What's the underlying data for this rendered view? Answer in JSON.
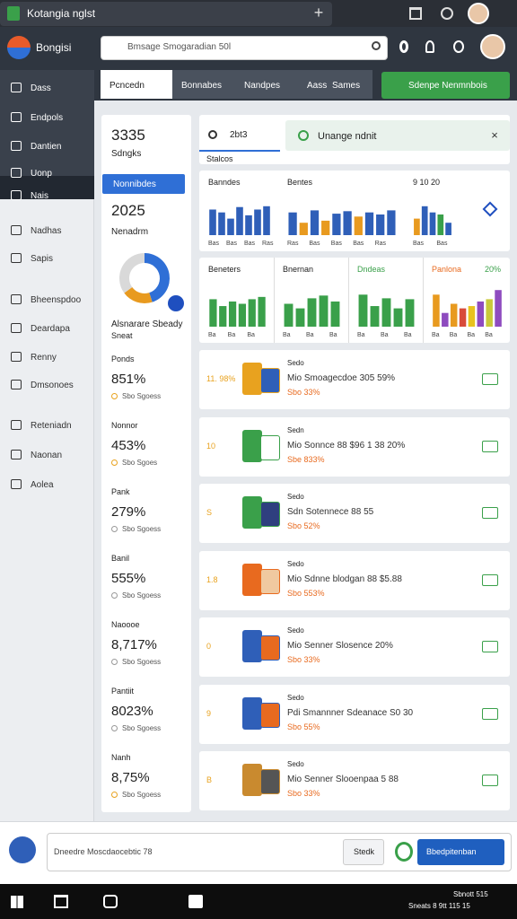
{
  "window": {
    "tab_title": "Kotangia nglst"
  },
  "header": {
    "brand": "Bongisi",
    "search": "Bmsage Smogaradian 50l"
  },
  "nav": {
    "tabs": [
      "Pcncedn",
      "Bonnabes",
      "Nandpes",
      "Aass",
      "Sames"
    ],
    "action": "Sdenpe Nenmnbois"
  },
  "sidebar": {
    "items": [
      "Dass",
      "Endpols",
      "Dantien",
      "Uonp",
      "Nais",
      "Nadhas",
      "Sapis",
      "Bheenspdoo",
      "Deardapa",
      "Renny",
      "Dmsonoes",
      "Reteniadn",
      "Naonan",
      "Aolea"
    ]
  },
  "summary": {
    "value_1": "3335",
    "label_1": "Sdngks",
    "button": "Nonnibdes",
    "value_2": "2025",
    "label_2": "Nenadrm",
    "donut": {
      "values": [
        45,
        20,
        35
      ],
      "colors": [
        "#2f6fd6",
        "#e89a1f",
        "#d9d9d9"
      ]
    },
    "caption": "Alsnarare Sbeady",
    "caption_2": "Sneat",
    "metrics": [
      {
        "label": "Ponds",
        "value": "851%",
        "note": "Sbo Sgoess"
      },
      {
        "label": "Nonnor",
        "value": "453%",
        "note": "Sbo Sgoes"
      },
      {
        "label": "Pank",
        "value": "279%",
        "note": "Sbo Sgoess"
      },
      {
        "label": "Banil",
        "value": "555%",
        "note": "Sbo Sgoess"
      },
      {
        "label": "Naoooe",
        "value": "8,717%",
        "note": "Sbo Sgoess"
      },
      {
        "label": "Pantiit",
        "value": "8023%",
        "note": "Sbo Sgoess"
      },
      {
        "label": "Nanh",
        "value": "8,75%",
        "note": "Sbo Sgoess"
      }
    ]
  },
  "panel": {
    "search": "2bt3",
    "alert": "Unange ndnit",
    "tab": "Stalcos"
  },
  "charts_row_1": [
    {
      "title": "Banndes",
      "categories": [
        "Bas",
        null,
        "Bas",
        null,
        "Bas",
        null,
        "Ras"
      ],
      "values": [
        62,
        55,
        40,
        68,
        48,
        62,
        70
      ],
      "colors": [
        "#2f5fb8",
        "#2f5fb8",
        "#2f5fb8",
        "#2f5fb8",
        "#2f5fb8",
        "#2f5fb8",
        "#2f5fb8"
      ],
      "ylim": [
        0,
        100
      ]
    },
    {
      "title": "Bentes",
      "categories": [
        "Ras",
        null,
        "Bas",
        null,
        "Bas",
        null,
        "Bas",
        null,
        "Ras",
        null
      ],
      "values": [
        55,
        30,
        60,
        35,
        52,
        58,
        45,
        55,
        50,
        60
      ],
      "colors": [
        "#2f5fb8",
        "#e89a1f",
        "#2f5fb8",
        "#e89a1f",
        "#2f5fb8",
        "#2f5fb8",
        "#e89a1f",
        "#2f5fb8",
        "#2f5fb8",
        "#2f5fb8"
      ],
      "ylim": [
        0,
        100
      ]
    },
    {
      "title": "9 10 20",
      "categories": [
        "Bas",
        null,
        null,
        "Bas",
        null
      ],
      "values": [
        40,
        70,
        55,
        50,
        30
      ],
      "colors": [
        "#e89a1f",
        "#2f5fb8",
        "#2f5fb8",
        "#3aa04a",
        "#2f5fb8"
      ],
      "ylim": [
        0,
        100
      ]
    }
  ],
  "charts_row_2": [
    {
      "title": "Beneters",
      "categories": [
        "Ba",
        null,
        "Ba",
        null,
        "Ba",
        null
      ],
      "values": [
        60,
        45,
        55,
        50,
        60,
        65
      ],
      "colors": [
        "#3aa04a",
        "#3aa04a",
        "#3aa04a",
        "#3aa04a",
        "#3aa04a",
        "#3aa04a"
      ],
      "ylim": [
        0,
        100
      ]
    },
    {
      "title": "Bnernan",
      "categories": [
        "Ba",
        null,
        "Ba",
        null,
        "Ba"
      ],
      "values": [
        50,
        40,
        62,
        68,
        55
      ],
      "colors": [
        "#3aa04a",
        "#3aa04a",
        "#3aa04a",
        "#3aa04a",
        "#3aa04a"
      ],
      "ylim": [
        0,
        100
      ]
    },
    {
      "title": "Dndeas",
      "categories": [
        "Ba",
        null,
        "Ba",
        null,
        "Ba"
      ],
      "values": [
        70,
        45,
        62,
        40,
        60
      ],
      "colors": [
        "#3aa04a",
        "#3aa04a",
        "#3aa04a",
        "#3aa04a",
        "#3aa04a"
      ],
      "ylim": [
        0,
        100
      ]
    },
    {
      "title": "Panlona",
      "badge": "20%",
      "categories": [
        "Ba",
        null,
        "Ba",
        null,
        "Ba",
        null,
        "Ba",
        null
      ],
      "values": [
        70,
        30,
        50,
        40,
        45,
        55,
        60,
        80
      ],
      "colors": [
        "#e89a1f",
        "#8e4bbf",
        "#e89a1f",
        "#d84b3a",
        "#e8c21f",
        "#8e4bbf",
        "#c9c93a",
        "#8e4bbf"
      ],
      "ylim": [
        0,
        100
      ]
    }
  ],
  "list": [
    {
      "badge": "11. 98%",
      "title": "Sedo",
      "line": "Mio Smoagecdoe 305 59%",
      "sub": "Sbo 33%"
    },
    {
      "badge": "10",
      "title": "Sedn",
      "line": "Mio Sonnce 88 $96 1 38 20%",
      "sub": "Sbe 833%"
    },
    {
      "badge": "S",
      "title": "Sedo",
      "line": "Sdn Sotennece 88 55",
      "sub": "Sbo 52%"
    },
    {
      "badge": "1.8",
      "title": "Sedo",
      "line": "Mio Sdnne blodgan 88 $5.88",
      "sub": "Sbo 553%"
    },
    {
      "badge": "0",
      "title": "Sedo",
      "line": "Mio Senner Slosence 20%",
      "sub": "Sbo 33%"
    },
    {
      "badge": "9",
      "title": "Sedo",
      "line": "Pdi Smannner Sdeanace S0 30",
      "sub": "Sbo 55%"
    },
    {
      "badge": "B",
      "title": "Sedo",
      "line": "Mio Senner Slooenpaa 5 88",
      "sub": "Sbo 33%"
    }
  ],
  "footer": {
    "input": "Dneedre Moscdaocebtic 78",
    "button": "Stedk",
    "primary": "Bbedpitenban"
  },
  "taskbar": {
    "text_1": "Sbnott 515",
    "text_2": "Sneats 8 9tt 115 15"
  }
}
